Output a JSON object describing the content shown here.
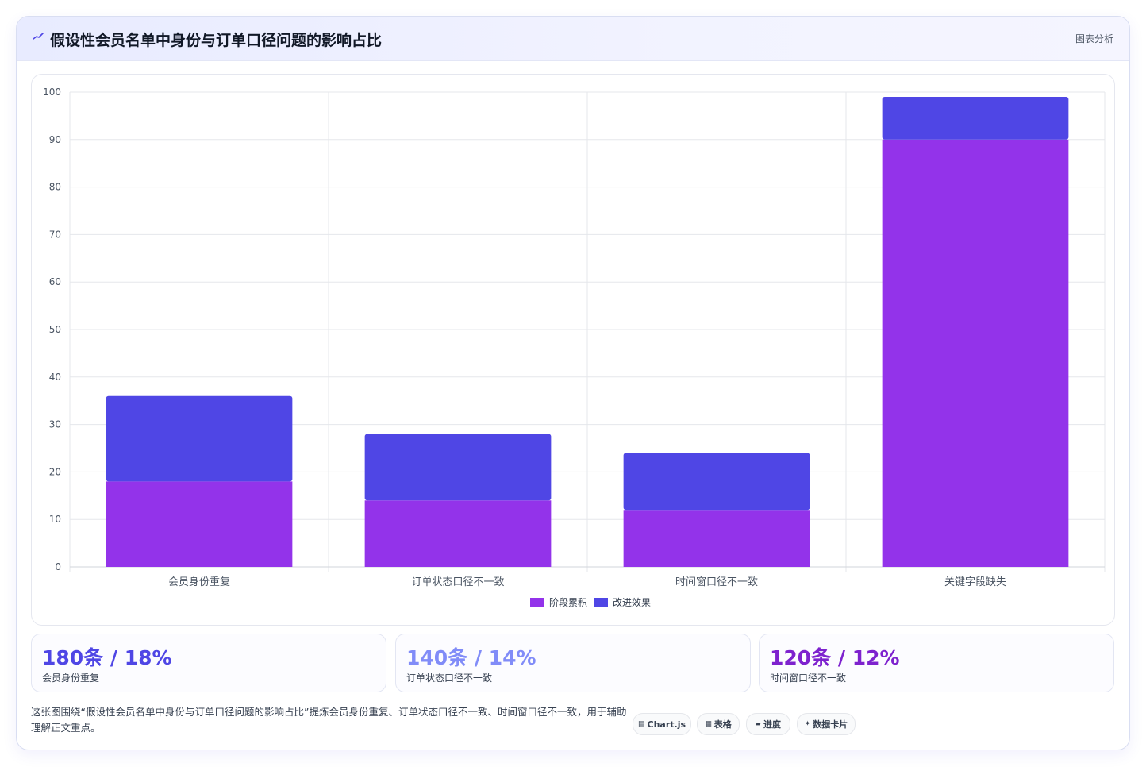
{
  "header": {
    "title": "假设性会员名单中身份与订单口径问题的影响占比",
    "tag": "图表分析",
    "icon": "sparkline-icon"
  },
  "chart_data": {
    "type": "bar",
    "stacked": true,
    "categories": [
      "会员身份重复",
      "订单状态口径不一致",
      "时间窗口径不一致",
      "关键字段缺失"
    ],
    "series": [
      {
        "name": "阶段累积",
        "values": [
          18,
          14,
          12,
          90
        ],
        "color": "#9333ea"
      },
      {
        "name": "改进效果",
        "values": [
          18,
          14,
          12,
          9
        ],
        "color": "#4f46e5"
      }
    ],
    "ylim": [
      0,
      100
    ],
    "yticks": [
      0,
      10,
      20,
      30,
      40,
      50,
      60,
      70,
      80,
      90,
      100
    ],
    "grid": true,
    "legend": "bottom"
  },
  "stats": [
    {
      "value": "180条 / 18%",
      "label": "会员身份重复",
      "color": "#4f46e5"
    },
    {
      "value": "140条 / 14%",
      "label": "订单状态口径不一致",
      "color": "#818cf8"
    },
    {
      "value": "120条 / 12%",
      "label": "时间窗口径不一致",
      "color": "#7e22ce"
    }
  ],
  "description": "这张图围绕“假设性会员名单中身份与订单口径问题的影响占比”提炼会员身份重复、订单状态口径不一致、时间窗口径不一致，用于辅助理解正文重点。",
  "pills": [
    {
      "icon": "▤",
      "label": "Chart.js"
    },
    {
      "icon": "▦",
      "label": "表格"
    },
    {
      "icon": "▰",
      "label": "进度"
    },
    {
      "icon": "✦",
      "label": "数据卡片"
    }
  ]
}
